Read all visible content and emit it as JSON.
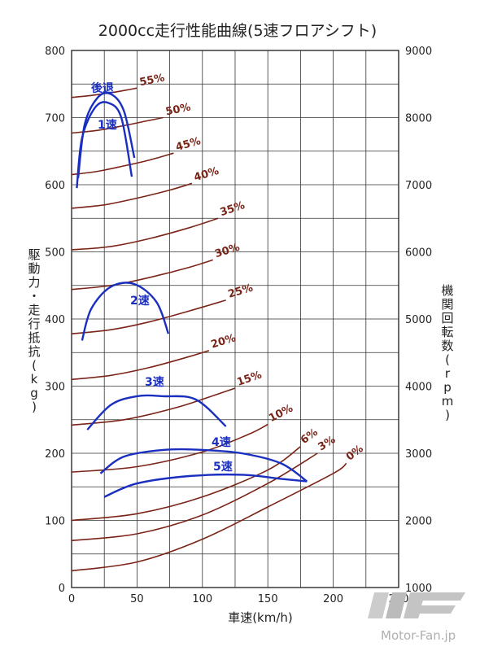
{
  "chart_data": {
    "type": "line",
    "title": "2000cc走行性能曲線(5速フロアシフト)",
    "xlabel": "車速(km/h)",
    "ylabel": "駆動力・走行抵抗(kg)",
    "y2label": "機関回転数(rpm)",
    "xlim": [
      0,
      250
    ],
    "ylim": [
      0,
      800
    ],
    "y2lim": [
      1000,
      9000
    ],
    "x_ticks": [
      "0",
      "50",
      "100",
      "150",
      "200",
      "250"
    ],
    "y_ticks": [
      "0",
      "100",
      "200",
      "300",
      "400",
      "500",
      "600",
      "700",
      "800"
    ],
    "y2_ticks": [
      "1000",
      "2000",
      "3000",
      "4000",
      "5000",
      "6000",
      "7000",
      "8000",
      "9000"
    ],
    "grid": true,
    "resistance_curves": [
      {
        "label": "55%",
        "x": [
          0,
          15,
          30,
          42,
          50
        ],
        "y": [
          730,
          733,
          737,
          741,
          744
        ]
      },
      {
        "label": "50%",
        "x": [
          0,
          20,
          40,
          55,
          70
        ],
        "y": [
          677,
          681,
          688,
          694,
          700
        ]
      },
      {
        "label": "45%",
        "x": [
          0,
          20,
          40,
          60,
          78
        ],
        "y": [
          615,
          620,
          628,
          637,
          647
        ]
      },
      {
        "label": "40%",
        "x": [
          0,
          25,
          50,
          75,
          92
        ],
        "y": [
          565,
          570,
          580,
          592,
          602
        ]
      },
      {
        "label": "35%",
        "x": [
          0,
          30,
          60,
          90,
          112
        ],
        "y": [
          503,
          508,
          520,
          536,
          550
        ]
      },
      {
        "label": "30%",
        "x": [
          0,
          30,
          60,
          90,
          108
        ],
        "y": [
          444,
          450,
          462,
          477,
          488
        ]
      },
      {
        "label": "25%",
        "x": [
          0,
          30,
          60,
          90,
          118
        ],
        "y": [
          378,
          384,
          396,
          412,
          428
        ]
      },
      {
        "label": "20%",
        "x": [
          0,
          30,
          60,
          90,
          105
        ],
        "y": [
          310,
          316,
          328,
          344,
          353
        ]
      },
      {
        "label": "15%",
        "x": [
          0,
          40,
          80,
          110,
          125
        ],
        "y": [
          242,
          250,
          268,
          287,
          297
        ]
      },
      {
        "label": "10%",
        "x": [
          0,
          50,
          100,
          135,
          150
        ],
        "y": [
          172,
          180,
          202,
          228,
          243
        ]
      },
      {
        "label": "6%",
        "x": [
          0,
          50,
          100,
          150,
          175
        ],
        "y": [
          100,
          110,
          135,
          175,
          210
        ]
      },
      {
        "label": "3%",
        "x": [
          0,
          50,
          100,
          150,
          188
        ],
        "y": [
          70,
          80,
          108,
          155,
          200
        ]
      },
      {
        "label": "0%",
        "x": [
          0,
          50,
          100,
          150,
          200,
          210
        ],
        "y": [
          25,
          38,
          72,
          120,
          170,
          185
        ]
      }
    ],
    "gear_curves": [
      {
        "label": "後退",
        "x": [
          5,
          10,
          20,
          30,
          40,
          48
        ],
        "y": [
          610,
          690,
          730,
          735,
          710,
          640
        ]
      },
      {
        "label": "1速",
        "x": [
          4,
          8,
          18,
          28,
          38,
          46
        ],
        "y": [
          595,
          670,
          715,
          722,
          700,
          612
        ]
      },
      {
        "label": "2速",
        "x": [
          8,
          15,
          30,
          48,
          65,
          74
        ],
        "y": [
          368,
          415,
          448,
          452,
          425,
          378
        ]
      },
      {
        "label": "3速",
        "x": [
          12,
          30,
          50,
          70,
          95,
          118
        ],
        "y": [
          235,
          272,
          285,
          285,
          280,
          240
        ]
      },
      {
        "label": "4速",
        "x": [
          22,
          40,
          70,
          100,
          130,
          160,
          180
        ],
        "y": [
          170,
          195,
          205,
          205,
          200,
          185,
          158
        ]
      },
      {
        "label": "5速",
        "x": [
          25,
          50,
          90,
          130,
          160,
          180
        ],
        "y": [
          135,
          155,
          166,
          168,
          162,
          158
        ]
      }
    ]
  },
  "watermark": {
    "brand": "Motor-Fan.jp"
  }
}
